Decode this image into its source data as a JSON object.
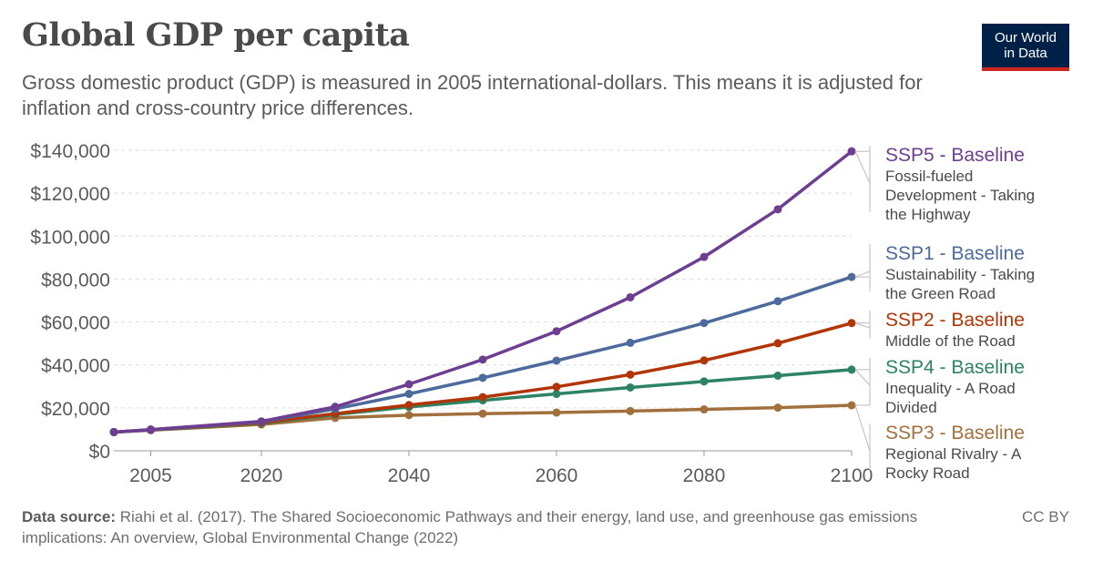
{
  "header": {
    "title": "Global GDP per capita",
    "subtitle": "Gross domestic product (GDP) is measured in 2005 international-dollars. This means it is adjusted for inflation and cross-country price differences.",
    "logo_line1": "Our World",
    "logo_line2": "in Data"
  },
  "footer": {
    "source_label": "Data source:",
    "source_text": "Riahi et al. (2017). The Shared Socioeconomic Pathways and their energy, land use, and greenhouse gas emissions implications: An overview, Global Environmental Change (2022)",
    "license": "CC BY"
  },
  "colors": {
    "axis_text": "#5b5b5b",
    "grid": "#dddddd",
    "logo_bg": "#002147",
    "logo_accent": "#ce261e"
  },
  "chart_data": {
    "type": "line",
    "x": [
      2000,
      2005,
      2020,
      2030,
      2040,
      2050,
      2060,
      2070,
      2080,
      2090,
      2100
    ],
    "xlim": [
      2000,
      2100
    ],
    "ylim": [
      0,
      140000
    ],
    "x_ticks": [
      {
        "value": 2005,
        "label": "2005"
      },
      {
        "value": 2020,
        "label": "2020"
      },
      {
        "value": 2040,
        "label": "2040"
      },
      {
        "value": 2060,
        "label": "2060"
      },
      {
        "value": 2080,
        "label": "2080"
      },
      {
        "value": 2100,
        "label": "2100"
      }
    ],
    "y_ticks": [
      {
        "value": 0,
        "label": "$0"
      },
      {
        "value": 20000,
        "label": "$20,000"
      },
      {
        "value": 40000,
        "label": "$40,000"
      },
      {
        "value": 60000,
        "label": "$60,000"
      },
      {
        "value": 80000,
        "label": "$80,000"
      },
      {
        "value": 100000,
        "label": "$100,000"
      },
      {
        "value": 120000,
        "label": "$120,000"
      },
      {
        "value": 140000,
        "label": "$140,000"
      }
    ],
    "grid": "horizontal-dashed",
    "legend": "right-inline",
    "series": [
      {
        "name": "SSP5 - Baseline",
        "description": [
          "Fossil-fueled",
          "Development - Taking",
          "the Highway"
        ],
        "color": "#6d3e91",
        "values": [
          8700,
          9900,
          13700,
          20500,
          31000,
          42500,
          55700,
          71500,
          90300,
          112500,
          139500
        ]
      },
      {
        "name": "SSP1 - Baseline",
        "description": [
          "Sustainability - Taking",
          "the Green Road"
        ],
        "color": "#4c6a9c",
        "values": [
          8700,
          9900,
          13500,
          19500,
          26500,
          34000,
          42000,
          50300,
          59500,
          69700,
          81000
        ]
      },
      {
        "name": "SSP2 - Baseline",
        "description": [
          "Middle of the Road"
        ],
        "color": "#b13507",
        "values": [
          8700,
          9800,
          13100,
          17300,
          21300,
          25000,
          29800,
          35500,
          42100,
          50100,
          59500
        ]
      },
      {
        "name": "SSP4 - Baseline",
        "description": [
          "Inequality - A Road",
          "Divided"
        ],
        "color": "#2c8465",
        "values": [
          8700,
          9700,
          12800,
          16900,
          20400,
          23500,
          26500,
          29500,
          32300,
          35000,
          37800
        ]
      },
      {
        "name": "SSP3 - Baseline",
        "description": [
          "Regional Rivalry - A",
          "Rocky Road"
        ],
        "color": "#a2703d",
        "values": [
          8700,
          9600,
          12300,
          15300,
          16600,
          17300,
          17800,
          18500,
          19300,
          20100,
          21200
        ]
      }
    ]
  }
}
